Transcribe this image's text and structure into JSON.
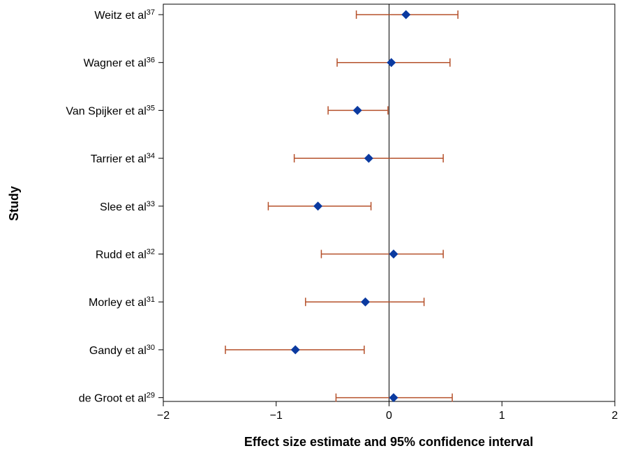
{
  "chart_data": {
    "type": "scatter",
    "xlabel": "Effect size estimate and 95% confidence interval",
    "ylabel": "Study",
    "xlim": [
      -2,
      2
    ],
    "xticks": [
      -2,
      -1,
      0,
      1,
      2
    ],
    "xtick_labels": [
      "−2",
      "−1",
      "0",
      "1",
      "2"
    ],
    "reference_line_x": 0,
    "studies": [
      {
        "name": "Weitz et al",
        "ref": "37",
        "estimate": 0.15,
        "ci_low": -0.29,
        "ci_high": 0.61
      },
      {
        "name": "Wagner et al",
        "ref": "36",
        "estimate": 0.02,
        "ci_low": -0.46,
        "ci_high": 0.54
      },
      {
        "name": "Van Spijker et al",
        "ref": "35",
        "estimate": -0.28,
        "ci_low": -0.54,
        "ci_high": -0.01
      },
      {
        "name": "Tarrier et al",
        "ref": "34",
        "estimate": -0.18,
        "ci_low": -0.84,
        "ci_high": 0.48
      },
      {
        "name": "Slee et al",
        "ref": "33",
        "estimate": -0.63,
        "ci_low": -1.07,
        "ci_high": -0.16
      },
      {
        "name": "Rudd et al",
        "ref": "32",
        "estimate": 0.04,
        "ci_low": -0.6,
        "ci_high": 0.48
      },
      {
        "name": "Morley et al",
        "ref": "31",
        "estimate": -0.21,
        "ci_low": -0.74,
        "ci_high": 0.31
      },
      {
        "name": "Gandy et al",
        "ref": "30",
        "estimate": -0.83,
        "ci_low": -1.45,
        "ci_high": -0.22
      },
      {
        "name": "de Groot et al",
        "ref": "29",
        "estimate": 0.04,
        "ci_low": -0.47,
        "ci_high": 0.56
      }
    ],
    "colors": {
      "point": "#0b3aa0",
      "ci_line": "#b5502a",
      "axis": "#000000",
      "reference_line": "#000000"
    }
  }
}
